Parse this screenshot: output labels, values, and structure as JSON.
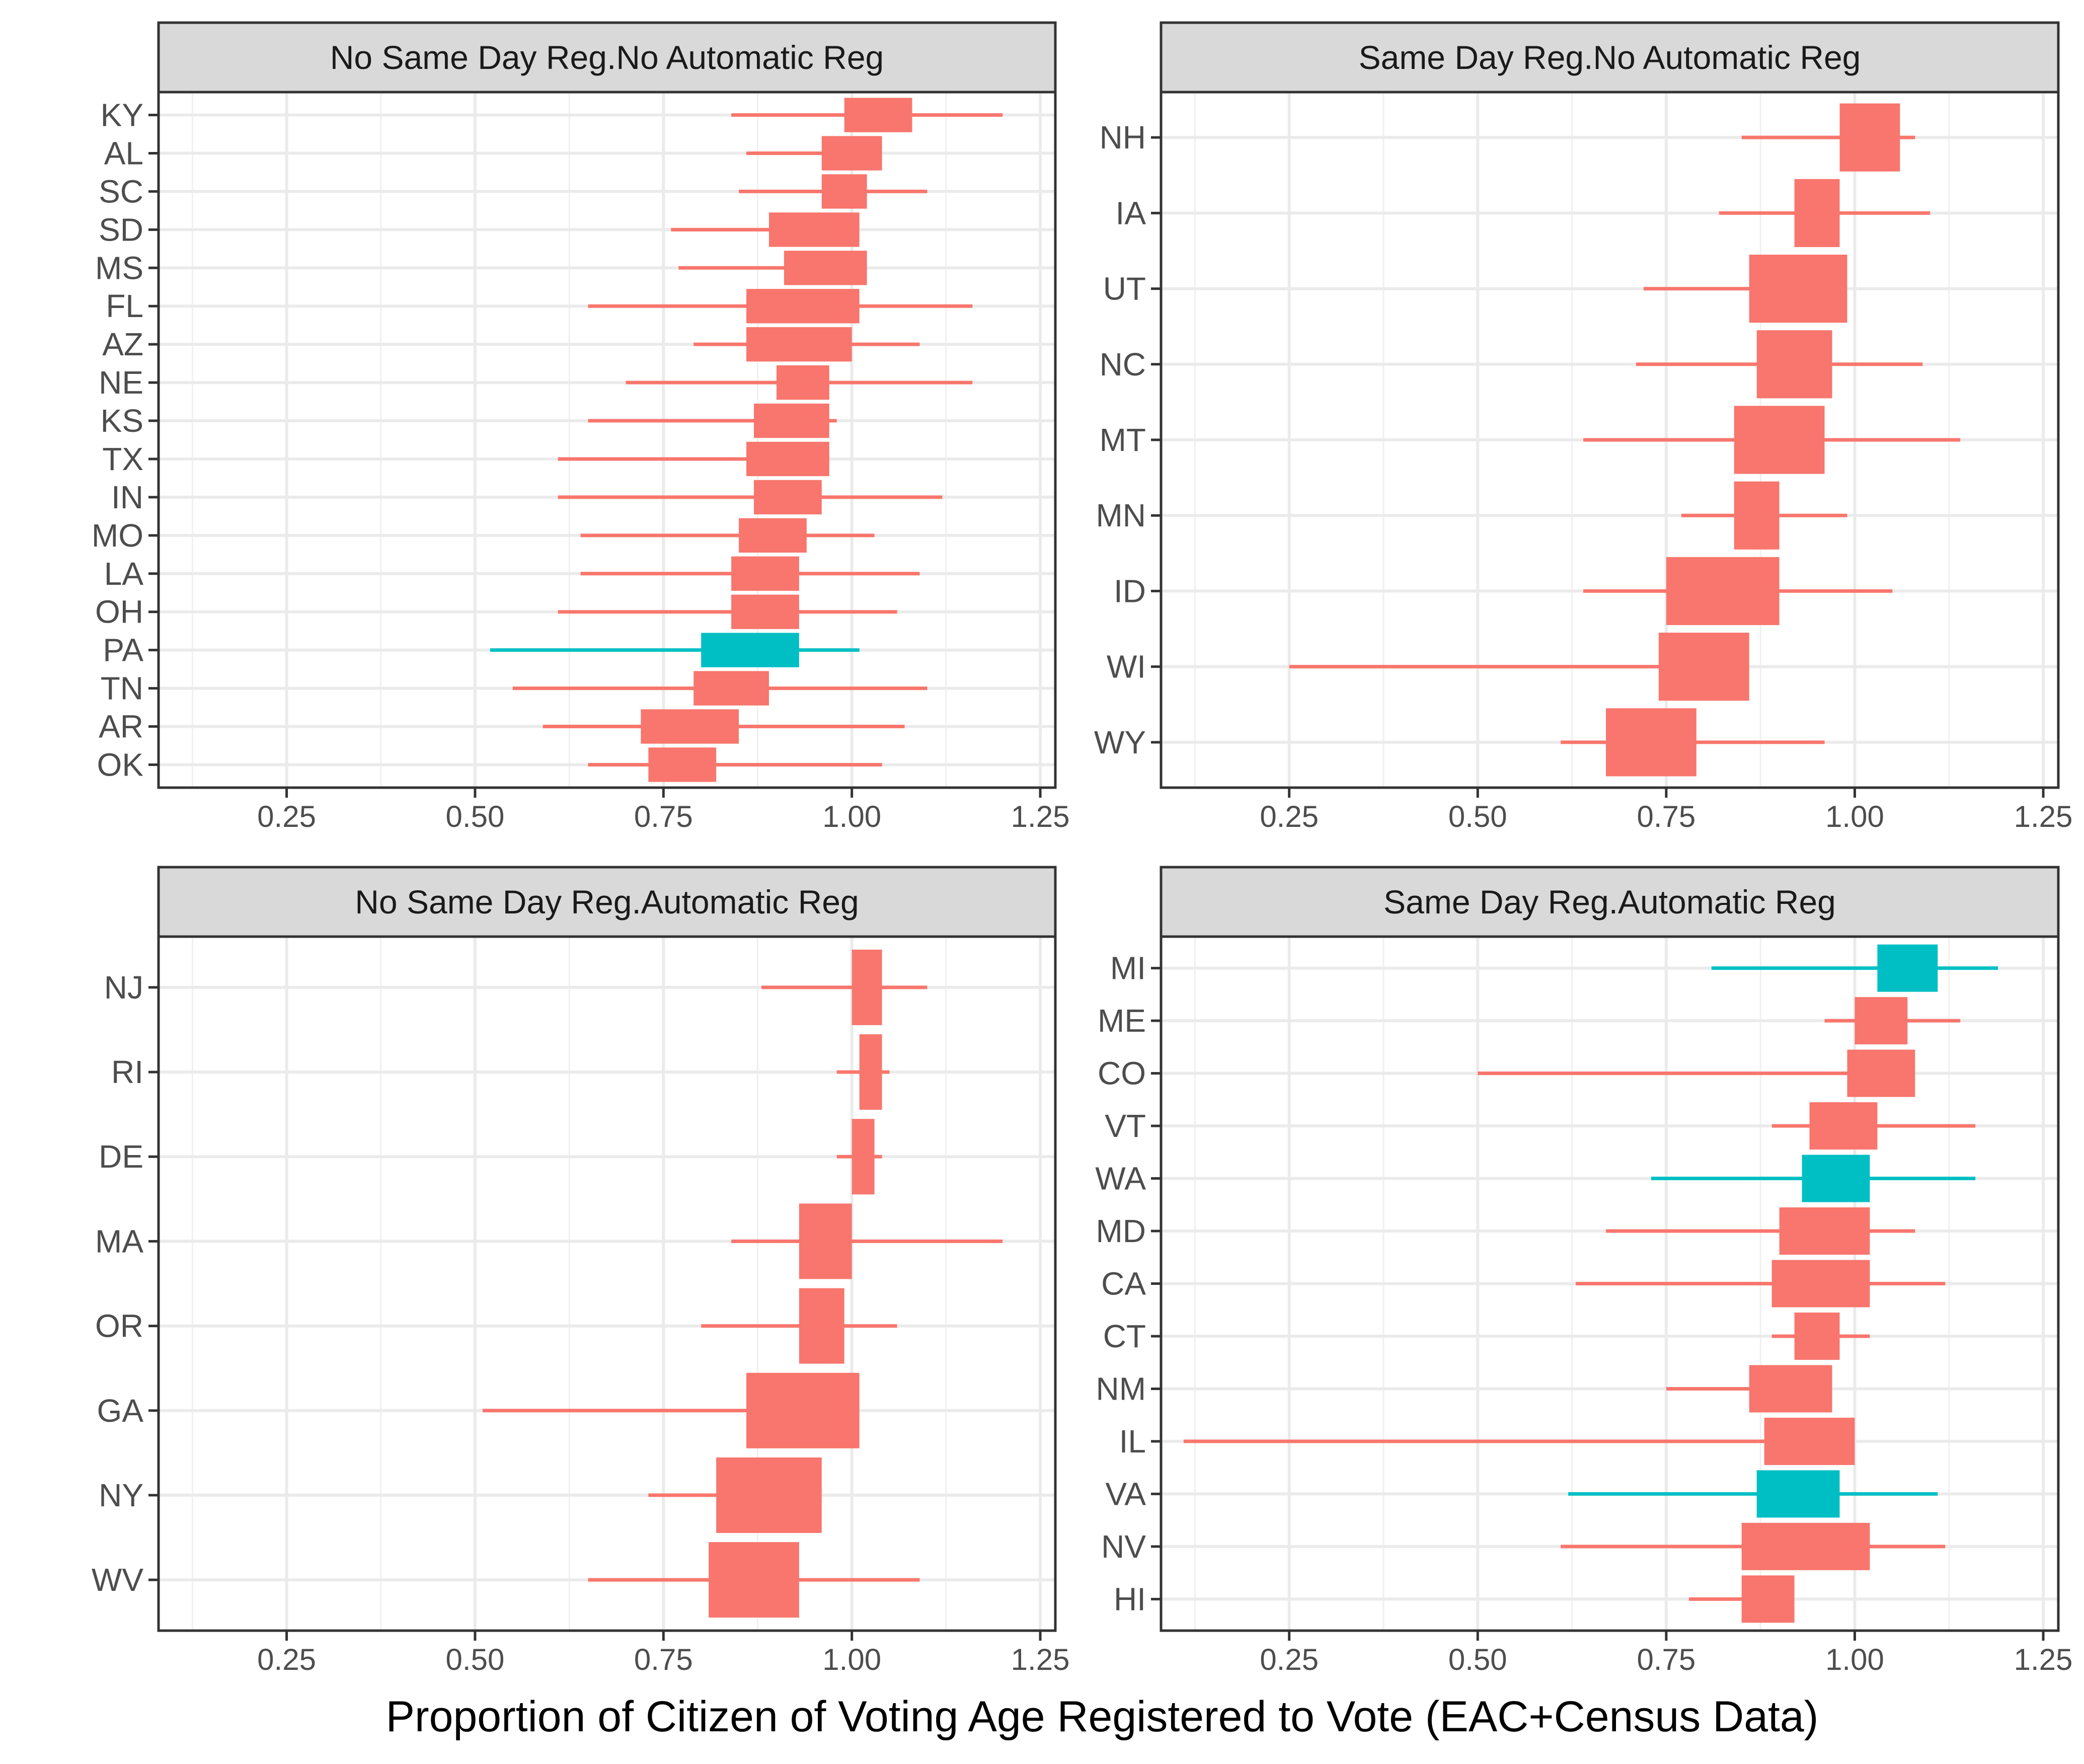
{
  "chart_data": {
    "type": "range-bar-faceted",
    "xlabel": "Proportion of Citizen of Voting Age Registered to Vote (EAC+Census Data)",
    "xlim": [
      0.08,
      1.27
    ],
    "xticks": [
      0.25,
      0.5,
      0.75,
      1.0,
      1.25
    ],
    "xtick_labels": [
      "0.25",
      "0.50",
      "0.75",
      "1.00",
      "1.25"
    ],
    "grid": true,
    "colors": {
      "default": "#F8766D",
      "highlight": "#00BFC4",
      "strip_fill": "#d9d9d9",
      "grid": "#ebebeb"
    },
    "panels": [
      {
        "title": "No Same Day Reg.No Automatic Reg",
        "rows": [
          {
            "state": "KY",
            "line": [
              0.84,
              1.2
            ],
            "box": [
              0.99,
              1.08
            ],
            "highlight": false
          },
          {
            "state": "AL",
            "line": [
              0.86,
              1.04
            ],
            "box": [
              0.96,
              1.04
            ],
            "highlight": false
          },
          {
            "state": "SC",
            "line": [
              0.85,
              1.1
            ],
            "box": [
              0.96,
              1.02
            ],
            "highlight": false
          },
          {
            "state": "SD",
            "line": [
              0.76,
              1.0
            ],
            "box": [
              0.89,
              1.01
            ],
            "highlight": false
          },
          {
            "state": "MS",
            "line": [
              0.77,
              1.01
            ],
            "box": [
              0.91,
              1.02
            ],
            "highlight": false
          },
          {
            "state": "FL",
            "line": [
              0.65,
              1.16
            ],
            "box": [
              0.86,
              1.01
            ],
            "highlight": false
          },
          {
            "state": "AZ",
            "line": [
              0.79,
              1.09
            ],
            "box": [
              0.86,
              1.0
            ],
            "highlight": false
          },
          {
            "state": "NE",
            "line": [
              0.7,
              1.16
            ],
            "box": [
              0.9,
              0.97
            ],
            "highlight": false
          },
          {
            "state": "KS",
            "line": [
              0.65,
              0.98
            ],
            "box": [
              0.87,
              0.97
            ],
            "highlight": false
          },
          {
            "state": "TX",
            "line": [
              0.61,
              0.97
            ],
            "box": [
              0.86,
              0.97
            ],
            "highlight": false
          },
          {
            "state": "IN",
            "line": [
              0.61,
              1.12
            ],
            "box": [
              0.87,
              0.96
            ],
            "highlight": false
          },
          {
            "state": "MO",
            "line": [
              0.64,
              1.03
            ],
            "box": [
              0.85,
              0.94
            ],
            "highlight": false
          },
          {
            "state": "LA",
            "line": [
              0.64,
              1.09
            ],
            "box": [
              0.84,
              0.93
            ],
            "highlight": false
          },
          {
            "state": "OH",
            "line": [
              0.61,
              1.06
            ],
            "box": [
              0.84,
              0.93
            ],
            "highlight": false
          },
          {
            "state": "PA",
            "line": [
              0.52,
              1.01
            ],
            "box": [
              0.8,
              0.93
            ],
            "highlight": true
          },
          {
            "state": "TN",
            "line": [
              0.55,
              1.1
            ],
            "box": [
              0.79,
              0.89
            ],
            "highlight": false
          },
          {
            "state": "AR",
            "line": [
              0.59,
              1.07
            ],
            "box": [
              0.72,
              0.85
            ],
            "highlight": false
          },
          {
            "state": "OK",
            "line": [
              0.65,
              1.04
            ],
            "box": [
              0.73,
              0.82
            ],
            "highlight": false
          }
        ]
      },
      {
        "title": "Same Day Reg.No Automatic Reg",
        "rows": [
          {
            "state": "NH",
            "line": [
              0.85,
              1.08
            ],
            "box": [
              0.98,
              1.06
            ],
            "highlight": false
          },
          {
            "state": "IA",
            "line": [
              0.82,
              1.1
            ],
            "box": [
              0.92,
              0.98
            ],
            "highlight": false
          },
          {
            "state": "UT",
            "line": [
              0.72,
              0.97
            ],
            "box": [
              0.86,
              0.99
            ],
            "highlight": false
          },
          {
            "state": "NC",
            "line": [
              0.71,
              1.09
            ],
            "box": [
              0.87,
              0.97
            ],
            "highlight": false
          },
          {
            "state": "MT",
            "line": [
              0.64,
              1.14
            ],
            "box": [
              0.84,
              0.96
            ],
            "highlight": false
          },
          {
            "state": "MN",
            "line": [
              0.77,
              0.99
            ],
            "box": [
              0.84,
              0.9
            ],
            "highlight": false
          },
          {
            "state": "ID",
            "line": [
              0.64,
              1.05
            ],
            "box": [
              0.75,
              0.9
            ],
            "highlight": false
          },
          {
            "state": "WI",
            "line": [
              0.25,
              0.84
            ],
            "box": [
              0.74,
              0.86
            ],
            "highlight": false
          },
          {
            "state": "WY",
            "line": [
              0.61,
              0.96
            ],
            "box": [
              0.67,
              0.79
            ],
            "highlight": false
          }
        ]
      },
      {
        "title": "No Same Day Reg.Automatic Reg",
        "rows": [
          {
            "state": "NJ",
            "line": [
              0.88,
              1.1
            ],
            "box": [
              1.0,
              1.04
            ],
            "highlight": false
          },
          {
            "state": "RI",
            "line": [
              0.98,
              1.05
            ],
            "box": [
              1.01,
              1.04
            ],
            "highlight": false
          },
          {
            "state": "DE",
            "line": [
              0.98,
              1.04
            ],
            "box": [
              1.0,
              1.03
            ],
            "highlight": false
          },
          {
            "state": "MA",
            "line": [
              0.84,
              1.2
            ],
            "box": [
              0.93,
              1.0
            ],
            "highlight": false
          },
          {
            "state": "OR",
            "line": [
              0.8,
              1.06
            ],
            "box": [
              0.93,
              0.99
            ],
            "highlight": false
          },
          {
            "state": "GA",
            "line": [
              0.51,
              1.0
            ],
            "box": [
              0.86,
              1.01
            ],
            "highlight": false
          },
          {
            "state": "NY",
            "line": [
              0.73,
              0.9
            ],
            "box": [
              0.82,
              0.96
            ],
            "highlight": false
          },
          {
            "state": "WV",
            "line": [
              0.65,
              1.09
            ],
            "box": [
              0.81,
              0.93
            ],
            "highlight": false
          }
        ]
      },
      {
        "title": "Same Day Reg.Automatic Reg",
        "rows": [
          {
            "state": "MI",
            "line": [
              0.81,
              1.19
            ],
            "box": [
              1.03,
              1.11
            ],
            "highlight": true
          },
          {
            "state": "ME",
            "line": [
              0.96,
              1.14
            ],
            "box": [
              1.0,
              1.07
            ],
            "highlight": false
          },
          {
            "state": "CO",
            "line": [
              0.5,
              1.0
            ],
            "box": [
              0.99,
              1.08
            ],
            "highlight": false
          },
          {
            "state": "VT",
            "line": [
              0.89,
              1.16
            ],
            "box": [
              0.94,
              1.03
            ],
            "highlight": false
          },
          {
            "state": "WA",
            "line": [
              0.73,
              1.16
            ],
            "box": [
              0.93,
              1.02
            ],
            "highlight": true
          },
          {
            "state": "MD",
            "line": [
              0.67,
              1.08
            ],
            "box": [
              0.9,
              1.02
            ],
            "highlight": false
          },
          {
            "state": "CA",
            "line": [
              0.63,
              1.12
            ],
            "box": [
              0.89,
              1.02
            ],
            "highlight": false
          },
          {
            "state": "CT",
            "line": [
              0.89,
              1.02
            ],
            "box": [
              0.92,
              0.98
            ],
            "highlight": false
          },
          {
            "state": "NM",
            "line": [
              0.75,
              0.89
            ],
            "box": [
              0.86,
              0.97
            ],
            "highlight": false
          },
          {
            "state": "IL",
            "line": [
              0.11,
              0.9
            ],
            "box": [
              0.88,
              1.0
            ],
            "highlight": false
          },
          {
            "state": "VA",
            "line": [
              0.62,
              1.11
            ],
            "box": [
              0.87,
              0.98
            ],
            "highlight": true
          },
          {
            "state": "NV",
            "line": [
              0.61,
              1.12
            ],
            "box": [
              0.85,
              1.02
            ],
            "highlight": false
          },
          {
            "state": "HI",
            "line": [
              0.78,
              0.91
            ],
            "box": [
              0.85,
              0.92
            ],
            "highlight": false
          }
        ]
      }
    ]
  }
}
